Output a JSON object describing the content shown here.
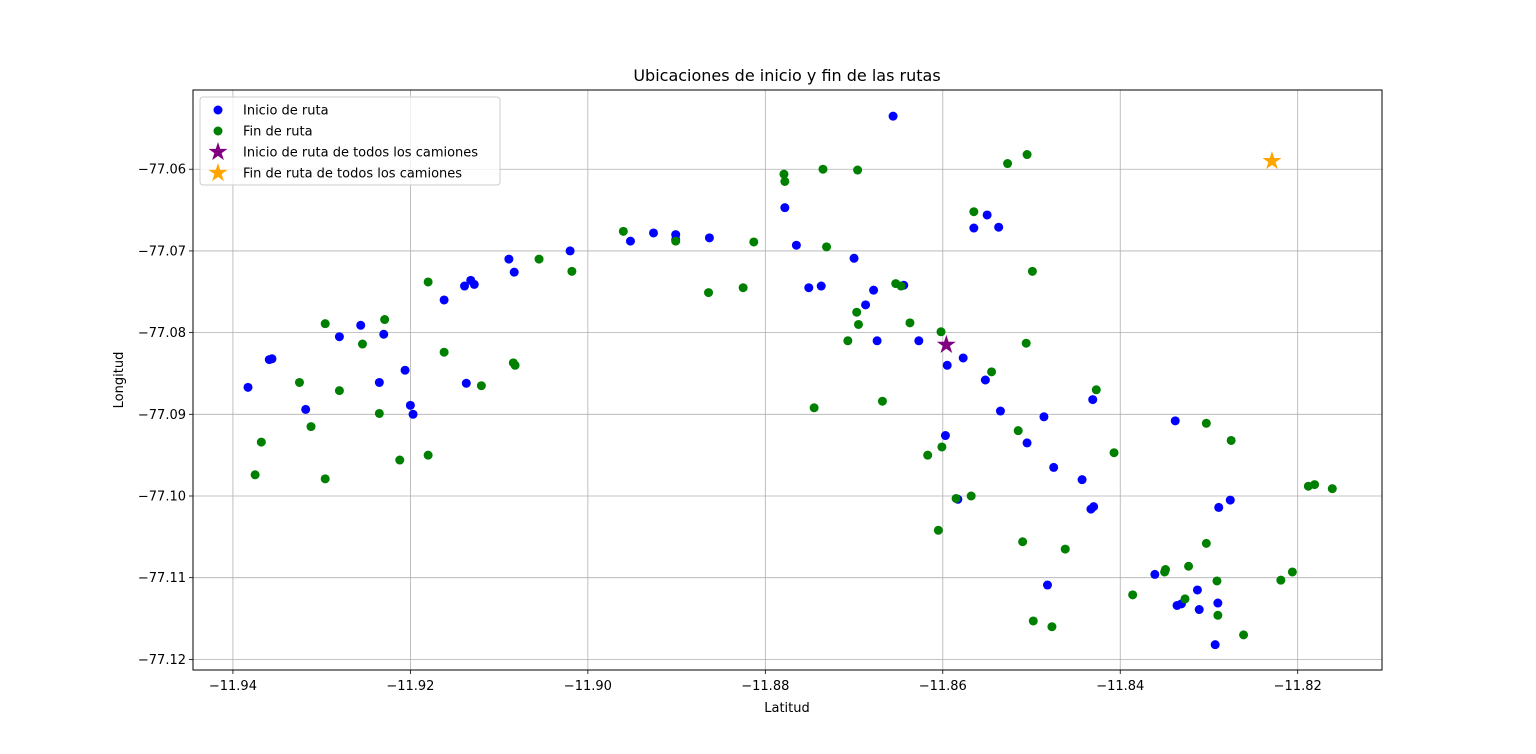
{
  "chart_data": {
    "type": "scatter",
    "title": "Ubicaciones de inicio y fin de las rutas",
    "xlabel": "Latitud",
    "ylabel": "Longitud",
    "xlim": [
      -11.9445,
      -11.8105
    ],
    "ylim": [
      -77.1213,
      -77.0503
    ],
    "xticks": [
      -11.94,
      -11.92,
      -11.9,
      -11.88,
      -11.86,
      -11.84,
      -11.82
    ],
    "xtick_labels": [
      "−11.94",
      "−11.92",
      "−11.90",
      "−11.88",
      "−11.86",
      "−11.84",
      "−11.82"
    ],
    "yticks": [
      -77.06,
      -77.07,
      -77.08,
      -77.09,
      -77.1,
      -77.11,
      -77.12
    ],
    "ytick_labels": [
      "−77.06",
      "−77.07",
      "−77.08",
      "−77.09",
      "−77.10",
      "−77.11",
      "−77.12"
    ],
    "grid": true,
    "legend_position": "top-left",
    "series": [
      {
        "name": "Inicio de ruta",
        "color": "#0000ff",
        "marker": "circle",
        "points": [
          [
            -11.9383,
            -77.0867
          ],
          [
            -11.9359,
            -77.0833
          ],
          [
            -11.9356,
            -77.0832
          ],
          [
            -11.9318,
            -77.0894
          ],
          [
            -11.928,
            -77.0805
          ],
          [
            -11.9256,
            -77.0791
          ],
          [
            -11.9235,
            -77.0861
          ],
          [
            -11.923,
            -77.0802
          ],
          [
            -11.9206,
            -77.0846
          ],
          [
            -11.92,
            -77.0889
          ],
          [
            -11.9197,
            -77.09
          ],
          [
            -11.9162,
            -77.076
          ],
          [
            -11.9139,
            -77.0743
          ],
          [
            -11.9132,
            -77.0736
          ],
          [
            -11.9128,
            -77.0741
          ],
          [
            -11.9137,
            -77.0862
          ],
          [
            -11.9089,
            -77.071
          ],
          [
            -11.9083,
            -77.0726
          ],
          [
            -11.902,
            -77.07
          ],
          [
            -11.8952,
            -77.0688
          ],
          [
            -11.8926,
            -77.0678
          ],
          [
            -11.8901,
            -77.068
          ],
          [
            -11.8901,
            -77.0686
          ],
          [
            -11.8863,
            -77.0684
          ],
          [
            -11.8778,
            -77.0647
          ],
          [
            -11.8765,
            -77.0693
          ],
          [
            -11.8751,
            -77.0745
          ],
          [
            -11.8737,
            -77.0743
          ],
          [
            -11.87,
            -77.0709
          ],
          [
            -11.8687,
            -77.0766
          ],
          [
            -11.8678,
            -77.0748
          ],
          [
            -11.8674,
            -77.081
          ],
          [
            -11.8656,
            -77.0535
          ],
          [
            -11.8644,
            -77.0742
          ],
          [
            -11.8627,
            -77.081
          ],
          [
            -11.8597,
            -77.0926
          ],
          [
            -11.8595,
            -77.084
          ],
          [
            -11.8583,
            -77.1004
          ],
          [
            -11.8577,
            -77.0831
          ],
          [
            -11.8565,
            -77.0672
          ],
          [
            -11.8552,
            -77.0858
          ],
          [
            -11.855,
            -77.0656
          ],
          [
            -11.8537,
            -77.0671
          ],
          [
            -11.8535,
            -77.0896
          ],
          [
            -11.8505,
            -77.0935
          ],
          [
            -11.8486,
            -77.0903
          ],
          [
            -11.8482,
            -77.1109
          ],
          [
            -11.8475,
            -77.0965
          ],
          [
            -11.8443,
            -77.098
          ],
          [
            -11.8433,
            -77.1016
          ],
          [
            -11.843,
            -77.1013
          ],
          [
            -11.8431,
            -77.0882
          ],
          [
            -11.8361,
            -77.1096
          ],
          [
            -11.8338,
            -77.0908
          ],
          [
            -11.8336,
            -77.1134
          ],
          [
            -11.8331,
            -77.1132
          ],
          [
            -11.8313,
            -77.1115
          ],
          [
            -11.8311,
            -77.1139
          ],
          [
            -11.8293,
            -77.1182
          ],
          [
            -11.829,
            -77.1131
          ],
          [
            -11.8289,
            -77.1014
          ],
          [
            -11.8276,
            -77.1005
          ]
        ]
      },
      {
        "name": "Fin de ruta",
        "color": "#008000",
        "marker": "circle",
        "points": [
          [
            -11.9375,
            -77.0974
          ],
          [
            -11.9368,
            -77.0934
          ],
          [
            -11.9325,
            -77.0861
          ],
          [
            -11.9312,
            -77.0915
          ],
          [
            -11.9296,
            -77.0789
          ],
          [
            -11.9296,
            -77.0979
          ],
          [
            -11.928,
            -77.0871
          ],
          [
            -11.9254,
            -77.0814
          ],
          [
            -11.9235,
            -77.0899
          ],
          [
            -11.9229,
            -77.0784
          ],
          [
            -11.9212,
            -77.0956
          ],
          [
            -11.918,
            -77.0738
          ],
          [
            -11.918,
            -77.095
          ],
          [
            -11.9162,
            -77.0824
          ],
          [
            -11.912,
            -77.0865
          ],
          [
            -11.9084,
            -77.0837
          ],
          [
            -11.9082,
            -77.084
          ],
          [
            -11.9055,
            -77.071
          ],
          [
            -11.9018,
            -77.0725
          ],
          [
            -11.896,
            -77.0676
          ],
          [
            -11.8901,
            -77.0688
          ],
          [
            -11.8864,
            -77.0751
          ],
          [
            -11.8825,
            -77.0745
          ],
          [
            -11.8813,
            -77.0689
          ],
          [
            -11.8779,
            -77.0606
          ],
          [
            -11.8778,
            -77.0615
          ],
          [
            -11.8745,
            -77.0892
          ],
          [
            -11.8735,
            -77.06
          ],
          [
            -11.8731,
            -77.0695
          ],
          [
            -11.8707,
            -77.081
          ],
          [
            -11.8697,
            -77.0775
          ],
          [
            -11.8696,
            -77.0601
          ],
          [
            -11.8695,
            -77.079
          ],
          [
            -11.8668,
            -77.0884
          ],
          [
            -11.8653,
            -77.074
          ],
          [
            -11.8647,
            -77.0743
          ],
          [
            -11.8637,
            -77.0788
          ],
          [
            -11.8617,
            -77.095
          ],
          [
            -11.8605,
            -77.1042
          ],
          [
            -11.8602,
            -77.0799
          ],
          [
            -11.8601,
            -77.094
          ],
          [
            -11.8585,
            -77.1003
          ],
          [
            -11.8568,
            -77.1
          ],
          [
            -11.8565,
            -77.0652
          ],
          [
            -11.8545,
            -77.0848
          ],
          [
            -11.8527,
            -77.0593
          ],
          [
            -11.8515,
            -77.092
          ],
          [
            -11.851,
            -77.1056
          ],
          [
            -11.8506,
            -77.0813
          ],
          [
            -11.8505,
            -77.0582
          ],
          [
            -11.8499,
            -77.0725
          ],
          [
            -11.8498,
            -77.1153
          ],
          [
            -11.8477,
            -77.116
          ],
          [
            -11.8462,
            -77.1065
          ],
          [
            -11.8427,
            -77.087
          ],
          [
            -11.8407,
            -77.0947
          ],
          [
            -11.8386,
            -77.1121
          ],
          [
            -11.835,
            -77.1093
          ],
          [
            -11.8349,
            -77.109
          ],
          [
            -11.8327,
            -77.1126
          ],
          [
            -11.8323,
            -77.1086
          ],
          [
            -11.8303,
            -77.0911
          ],
          [
            -11.8303,
            -77.1058
          ],
          [
            -11.8291,
            -77.1104
          ],
          [
            -11.829,
            -77.1146
          ],
          [
            -11.8275,
            -77.0932
          ],
          [
            -11.8261,
            -77.117
          ],
          [
            -11.8219,
            -77.1103
          ],
          [
            -11.8206,
            -77.1093
          ],
          [
            -11.8188,
            -77.0988
          ],
          [
            -11.8181,
            -77.0986
          ],
          [
            -11.8161,
            -77.0991
          ]
        ]
      },
      {
        "name": "Inicio de ruta de todos los camiones",
        "color": "#800080",
        "marker": "star",
        "points": [
          [
            -11.8596,
            -77.0815
          ]
        ]
      },
      {
        "name": "Fin de ruta de todos los camiones",
        "color": "#ffa500",
        "marker": "star",
        "points": [
          [
            -11.8229,
            -77.059
          ]
        ]
      }
    ]
  }
}
